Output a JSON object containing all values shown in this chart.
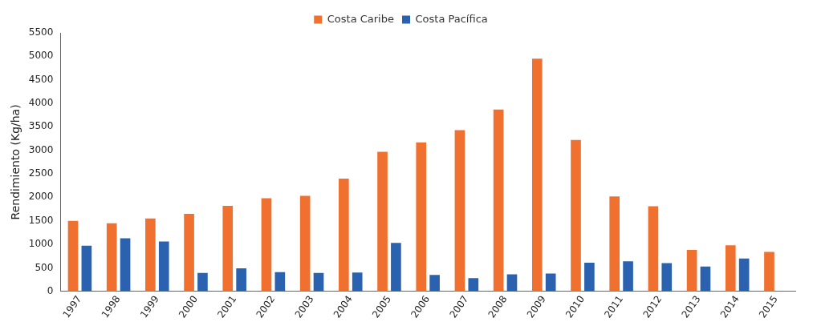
{
  "chart_data": {
    "type": "bar",
    "ylabel": "Rendimiento (Kg/ha)",
    "categories": [
      "1997",
      "1998",
      "1999",
      "2000",
      "2001",
      "2002",
      "2003",
      "2004",
      "2005",
      "2006",
      "2007",
      "2008",
      "2009",
      "2010",
      "2011",
      "2012",
      "2013",
      "2014",
      "2015"
    ],
    "series": [
      {
        "name": "Costa Caribe",
        "color": "#f07030",
        "values": [
          1500,
          1450,
          1550,
          1650,
          1820,
          1980,
          2030,
          2400,
          2970,
          3170,
          3430,
          3870,
          4950,
          3220,
          2020,
          1810,
          880,
          980,
          840
        ]
      },
      {
        "name": "Costa Pacífica",
        "color": "#2a62b0",
        "values": [
          970,
          1130,
          1060,
          390,
          490,
          410,
          390,
          400,
          1030,
          350,
          280,
          360,
          380,
          610,
          640,
          600,
          530,
          700,
          null
        ]
      }
    ],
    "ylim": [
      0,
      5500
    ],
    "yticks": [
      0,
      500,
      1000,
      1500,
      2000,
      2500,
      3000,
      3500,
      4000,
      4500,
      5000,
      5500
    ],
    "grid": false,
    "legend": "top"
  }
}
